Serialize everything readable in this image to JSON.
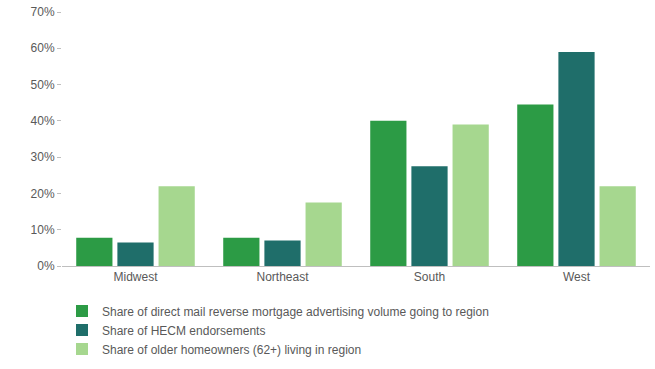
{
  "chart_data": {
    "type": "bar",
    "categories": [
      "Midwest",
      "Northeast",
      "South",
      "West"
    ],
    "series": [
      {
        "name": "Share of direct mail reverse mortgage advertising volume going to region",
        "color": "#2c9b45",
        "values": [
          7.8,
          7.8,
          40,
          44.5
        ]
      },
      {
        "name": "Share of HECM endorsements",
        "color": "#1f6e6a",
        "values": [
          6.5,
          7.0,
          27.5,
          59
        ]
      },
      {
        "name": "Share of older homeowners (62+) living in region",
        "color": "#a6d78f",
        "values": [
          22,
          17.5,
          39,
          22
        ]
      }
    ],
    "ylim": [
      0,
      70
    ],
    "yticks": [
      {
        "value": 0,
        "label": "0%"
      },
      {
        "value": 10,
        "label": "10%"
      },
      {
        "value": 20,
        "label": "20%"
      },
      {
        "value": 30,
        "label": "30%"
      },
      {
        "value": 40,
        "label": "40%"
      },
      {
        "value": 50,
        "label": "50%"
      },
      {
        "value": 60,
        "label": "60%"
      },
      {
        "value": 70,
        "label": "70%"
      }
    ],
    "grid": false,
    "legend": "bottom"
  }
}
